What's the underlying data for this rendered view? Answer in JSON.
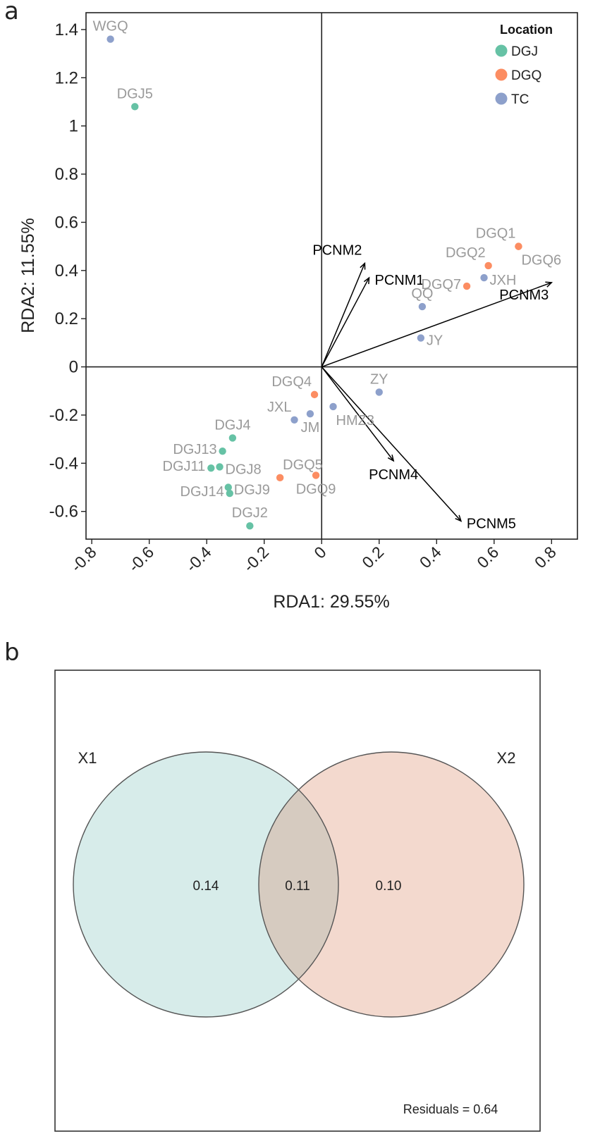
{
  "panel_labels": {
    "a": "a",
    "b": "b"
  },
  "colors": {
    "DGJ": "#66c2a5",
    "DGQ": "#fc8d62",
    "TC": "#8da0cb",
    "site_label": "#9a9a9a",
    "arrow": "#000000",
    "x1_fill": "#d7ecea",
    "x2_fill": "#f3d9ce",
    "overlap_fill": "#d6cbc0"
  },
  "chart_data": [
    {
      "type": "scatter",
      "title": "",
      "xlabel": "RDA1: 29.55%",
      "ylabel": "RDA2: 11.55%",
      "xlim": [
        -0.82,
        0.89
      ],
      "ylim": [
        -0.715,
        1.47
      ],
      "xticks": [
        {
          "value": -0.8,
          "label": "-0.8"
        },
        {
          "value": -0.6,
          "label": "-0.6"
        },
        {
          "value": -0.4,
          "label": "-0.4"
        },
        {
          "value": -0.2,
          "label": "-0.2"
        },
        {
          "value": 0,
          "label": "0"
        },
        {
          "value": 0.2,
          "label": "0.2"
        },
        {
          "value": 0.4,
          "label": "0.4"
        },
        {
          "value": 0.6,
          "label": "0.6"
        },
        {
          "value": 0.8,
          "label": "0.8"
        }
      ],
      "yticks": [
        {
          "value": -0.6,
          "label": "-0.6"
        },
        {
          "value": -0.4,
          "label": "-0.4"
        },
        {
          "value": -0.2,
          "label": "-0.2"
        },
        {
          "value": 0,
          "label": "0"
        },
        {
          "value": 0.2,
          "label": "0.2"
        },
        {
          "value": 0.4,
          "label": "0.4"
        },
        {
          "value": 0.6,
          "label": "0.6"
        },
        {
          "value": 0.8,
          "label": "0.8"
        },
        {
          "value": 1,
          "label": "1"
        },
        {
          "value": 1.2,
          "label": "1.2"
        },
        {
          "value": 1.4,
          "label": "1.4"
        }
      ],
      "legend": {
        "title": "Location",
        "position": "top-right",
        "entries": [
          {
            "group": "DGJ",
            "label": "DGJ"
          },
          {
            "group": "DGQ",
            "label": "DGQ"
          },
          {
            "group": "TC",
            "label": "TC"
          }
        ]
      },
      "points": [
        {
          "name": "WGQ",
          "group": "TC",
          "x": -0.735,
          "y": 1.36,
          "anchor": "top"
        },
        {
          "name": "DGJ5",
          "group": "DGJ",
          "x": -0.65,
          "y": 1.08,
          "anchor": "top"
        },
        {
          "name": "DGQ1",
          "group": "DGQ",
          "x": 0.685,
          "y": 0.5,
          "anchor": "top-left"
        },
        {
          "name": "DGQ2",
          "group": "DGQ",
          "x": 0.58,
          "y": 0.42,
          "anchor": "top-left"
        },
        {
          "name": "DGQ6",
          "group": "DGQ",
          "x": 0.685,
          "y": 0.5,
          "anchor": "bottom-right"
        },
        {
          "name": "DGQ7",
          "group": "DGQ",
          "x": 0.505,
          "y": 0.335,
          "anchor": "left"
        },
        {
          "name": "JXH",
          "group": "TC",
          "x": 0.565,
          "y": 0.37,
          "anchor": "right"
        },
        {
          "name": "QQ",
          "group": "TC",
          "x": 0.35,
          "y": 0.25,
          "anchor": "top"
        },
        {
          "name": "JY",
          "group": "TC",
          "x": 0.345,
          "y": 0.12,
          "anchor": "right"
        },
        {
          "name": "ZY",
          "group": "TC",
          "x": 0.2,
          "y": -0.105,
          "anchor": "top"
        },
        {
          "name": "DGQ4",
          "group": "DGQ",
          "x": -0.025,
          "y": -0.115,
          "anchor": "top-left"
        },
        {
          "name": "JXL",
          "group": "TC",
          "x": -0.095,
          "y": -0.22,
          "anchor": "top-left"
        },
        {
          "name": "JM",
          "group": "TC",
          "x": -0.04,
          "y": -0.195,
          "anchor": "bottom"
        },
        {
          "name": "HMZ3",
          "group": "TC",
          "x": 0.04,
          "y": -0.165,
          "anchor": "bottom-right"
        },
        {
          "name": "DGJ4",
          "group": "DGJ",
          "x": -0.31,
          "y": -0.295,
          "anchor": "top"
        },
        {
          "name": "DGJ13",
          "group": "DGJ",
          "x": -0.345,
          "y": -0.35,
          "anchor": "left"
        },
        {
          "name": "DGJ11",
          "group": "DGJ",
          "x": -0.385,
          "y": -0.42,
          "anchor": "left"
        },
        {
          "name": "DGJ8",
          "group": "DGJ",
          "x": -0.355,
          "y": -0.415,
          "anchor": "right"
        },
        {
          "name": "DGQ5",
          "group": "DGQ",
          "x": -0.145,
          "y": -0.46,
          "anchor": "top-right"
        },
        {
          "name": "DGQ9",
          "group": "DGQ",
          "x": -0.02,
          "y": -0.45,
          "anchor": "bottom"
        },
        {
          "name": "DGJ9",
          "group": "DGJ",
          "x": -0.325,
          "y": -0.5,
          "anchor": "right"
        },
        {
          "name": "DGJ14",
          "group": "DGJ",
          "x": -0.32,
          "y": -0.525,
          "anchor": "left"
        },
        {
          "name": "DGJ2",
          "group": "DGJ",
          "x": -0.25,
          "y": -0.66,
          "anchor": "top"
        }
      ],
      "arrows": [
        {
          "name": "PCNM1",
          "x": 0.165,
          "y": 0.37,
          "label_anchor": "right"
        },
        {
          "name": "PCNM2",
          "x": 0.15,
          "y": 0.43,
          "label_anchor": "top-left"
        },
        {
          "name": "PCNM3",
          "x": 0.8,
          "y": 0.35,
          "label_anchor": "bottom-left"
        },
        {
          "name": "PCNM4",
          "x": 0.25,
          "y": -0.39,
          "label_anchor": "bottom"
        },
        {
          "name": "PCNM5",
          "x": 0.485,
          "y": -0.64,
          "label_anchor": "right"
        }
      ]
    },
    {
      "type": "venn",
      "title": "",
      "sets": [
        {
          "name": "X1",
          "label": "X1",
          "fraction": "0.14"
        },
        {
          "name": "X2",
          "label": "X2",
          "fraction": "0.10"
        }
      ],
      "overlap": "0.11",
      "residuals_label": "Residuals = 0.64"
    }
  ]
}
